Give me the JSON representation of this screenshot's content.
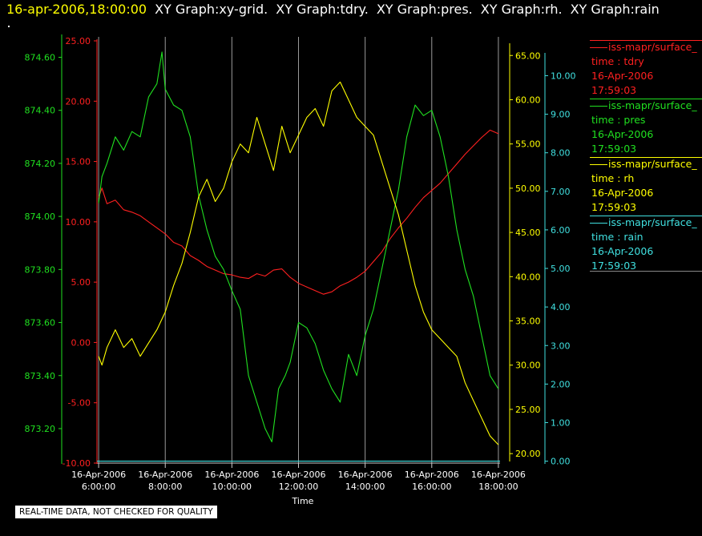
{
  "header": {
    "timestamp": "16-apr-2006,18:00:00",
    "graphs": [
      "XY Graph:xy-grid.",
      "XY Graph:tdry.",
      "XY Graph:pres.",
      "XY Graph:rh.",
      "XY Graph:rain"
    ]
  },
  "footer": {
    "notice": "REAL-TIME DATA, NOT CHECKED FOR QUALITY"
  },
  "legend": [
    {
      "name": "iss-mapr/surface_",
      "var": "time : tdry",
      "date": "16-Apr-2006",
      "time": "17:59:03",
      "color": "#ff2020"
    },
    {
      "name": "iss-mapr/surface_",
      "var": "time : pres",
      "date": "16-Apr-2006",
      "time": "17:59:03",
      "color": "#20e020"
    },
    {
      "name": "iss-mapr/surface_",
      "var": "time : rh",
      "date": "16-Apr-2006",
      "time": "17:59:03",
      "color": "#ffff00"
    },
    {
      "name": "iss-mapr/surface_",
      "var": "time : rain",
      "date": "16-Apr-2006",
      "time": "17:59:03",
      "color": "#40e0e0"
    }
  ],
  "chart_data": {
    "type": "line",
    "xlabel": "Time",
    "xlim": [
      5.95,
      18.05
    ],
    "xticks": [
      {
        "t": 6,
        "date": "16-Apr-2006",
        "time": "6:00:00"
      },
      {
        "t": 8,
        "date": "16-Apr-2006",
        "time": "8:00:00"
      },
      {
        "t": 10,
        "date": "16-Apr-2006",
        "time": "10:00:00"
      },
      {
        "t": 12,
        "date": "16-Apr-2006",
        "time": "12:00:00"
      },
      {
        "t": 14,
        "date": "16-Apr-2006",
        "time": "14:00:00"
      },
      {
        "t": 16,
        "date": "16-Apr-2006",
        "time": "16:00:00"
      },
      {
        "t": 18,
        "date": "16-Apr-2006",
        "time": "18:00:00"
      }
    ],
    "grid": "vertical",
    "axes": {
      "pres": {
        "color": "#20e020",
        "ylim": [
          873.07,
          874.68
        ],
        "ticks": [
          873.2,
          873.4,
          873.6,
          873.8,
          874.0,
          874.2,
          874.4,
          874.6
        ],
        "decimals": 2
      },
      "tdry": {
        "color": "#ff2020",
        "ylim": [
          -10,
          25
        ],
        "ticks": [
          -10,
          -5,
          0,
          5,
          10,
          15,
          20,
          25
        ],
        "decimals": 2
      },
      "rh": {
        "color": "#ffff00",
        "ylim": [
          19.2,
          66.2
        ],
        "ticks": [
          20,
          25,
          30,
          35,
          40,
          45,
          50,
          55,
          60,
          65
        ],
        "decimals": 2
      },
      "rain": {
        "color": "#40e0e0",
        "ylim": [
          -0.05,
          10.55
        ],
        "ticks": [
          0,
          1,
          2,
          3,
          4,
          5,
          6,
          7,
          8,
          9,
          10
        ],
        "decimals": 2
      }
    },
    "series": [
      {
        "name": "tdry",
        "axis": "tdry",
        "color": "#ff2020",
        "points": [
          [
            6.0,
            12.0
          ],
          [
            6.1,
            12.8
          ],
          [
            6.25,
            11.5
          ],
          [
            6.5,
            11.8
          ],
          [
            6.75,
            11.0
          ],
          [
            7.0,
            10.8
          ],
          [
            7.25,
            10.5
          ],
          [
            7.5,
            10.0
          ],
          [
            7.75,
            9.5
          ],
          [
            8.0,
            9.0
          ],
          [
            8.25,
            8.3
          ],
          [
            8.5,
            8.0
          ],
          [
            8.75,
            7.2
          ],
          [
            9.0,
            6.8
          ],
          [
            9.25,
            6.3
          ],
          [
            9.5,
            6.0
          ],
          [
            9.75,
            5.7
          ],
          [
            10.0,
            5.6
          ],
          [
            10.25,
            5.4
          ],
          [
            10.5,
            5.3
          ],
          [
            10.75,
            5.7
          ],
          [
            11.0,
            5.5
          ],
          [
            11.25,
            6.0
          ],
          [
            11.5,
            6.1
          ],
          [
            11.75,
            5.4
          ],
          [
            12.0,
            4.9
          ],
          [
            12.25,
            4.6
          ],
          [
            12.5,
            4.3
          ],
          [
            12.75,
            4.0
          ],
          [
            13.0,
            4.2
          ],
          [
            13.25,
            4.7
          ],
          [
            13.5,
            5.0
          ],
          [
            13.75,
            5.4
          ],
          [
            14.0,
            5.9
          ],
          [
            14.25,
            6.7
          ],
          [
            14.5,
            7.5
          ],
          [
            14.75,
            8.6
          ],
          [
            15.0,
            9.5
          ],
          [
            15.25,
            10.3
          ],
          [
            15.5,
            11.2
          ],
          [
            15.75,
            12.0
          ],
          [
            16.0,
            12.6
          ],
          [
            16.25,
            13.2
          ],
          [
            16.5,
            14.0
          ],
          [
            16.75,
            14.8
          ],
          [
            17.0,
            15.6
          ],
          [
            17.25,
            16.3
          ],
          [
            17.5,
            17.0
          ],
          [
            17.75,
            17.6
          ],
          [
            18.0,
            17.3
          ]
        ]
      },
      {
        "name": "pres",
        "axis": "pres",
        "color": "#20e020",
        "points": [
          [
            6.0,
            874.05
          ],
          [
            6.1,
            874.15
          ],
          [
            6.25,
            874.2
          ],
          [
            6.5,
            874.3
          ],
          [
            6.75,
            874.25
          ],
          [
            7.0,
            874.32
          ],
          [
            7.25,
            874.3
          ],
          [
            7.5,
            874.45
          ],
          [
            7.75,
            874.5
          ],
          [
            7.9,
            874.62
          ],
          [
            8.0,
            874.48
          ],
          [
            8.25,
            874.42
          ],
          [
            8.5,
            874.4
          ],
          [
            8.75,
            874.3
          ],
          [
            9.0,
            874.08
          ],
          [
            9.25,
            873.95
          ],
          [
            9.5,
            873.85
          ],
          [
            9.75,
            873.8
          ],
          [
            10.0,
            873.72
          ],
          [
            10.25,
            873.65
          ],
          [
            10.5,
            873.4
          ],
          [
            10.75,
            873.3
          ],
          [
            11.0,
            873.2
          ],
          [
            11.2,
            873.15
          ],
          [
            11.4,
            873.35
          ],
          [
            11.6,
            873.4
          ],
          [
            11.75,
            873.45
          ],
          [
            12.0,
            873.6
          ],
          [
            12.25,
            873.58
          ],
          [
            12.5,
            873.52
          ],
          [
            12.75,
            873.42
          ],
          [
            13.0,
            873.35
          ],
          [
            13.25,
            873.3
          ],
          [
            13.5,
            873.48
          ],
          [
            13.75,
            873.4
          ],
          [
            14.0,
            873.55
          ],
          [
            14.25,
            873.65
          ],
          [
            14.5,
            873.8
          ],
          [
            14.75,
            873.95
          ],
          [
            15.0,
            874.1
          ],
          [
            15.25,
            874.3
          ],
          [
            15.5,
            874.42
          ],
          [
            15.75,
            874.38
          ],
          [
            16.0,
            874.4
          ],
          [
            16.25,
            874.3
          ],
          [
            16.5,
            874.15
          ],
          [
            16.75,
            873.95
          ],
          [
            17.0,
            873.8
          ],
          [
            17.25,
            873.7
          ],
          [
            17.5,
            873.55
          ],
          [
            17.75,
            873.4
          ],
          [
            18.0,
            873.35
          ]
        ]
      },
      {
        "name": "rh",
        "axis": "rh",
        "color": "#ffff00",
        "points": [
          [
            6.0,
            31.0
          ],
          [
            6.1,
            30.0
          ],
          [
            6.25,
            32.0
          ],
          [
            6.5,
            34.0
          ],
          [
            6.75,
            32.0
          ],
          [
            7.0,
            33.0
          ],
          [
            7.25,
            31.0
          ],
          [
            7.5,
            32.5
          ],
          [
            7.75,
            34.0
          ],
          [
            8.0,
            36.0
          ],
          [
            8.25,
            39.0
          ],
          [
            8.5,
            41.5
          ],
          [
            8.75,
            45.0
          ],
          [
            9.0,
            49.0
          ],
          [
            9.25,
            51.0
          ],
          [
            9.5,
            48.5
          ],
          [
            9.75,
            50.0
          ],
          [
            10.0,
            53.0
          ],
          [
            10.25,
            55.0
          ],
          [
            10.5,
            54.0
          ],
          [
            10.75,
            58.0
          ],
          [
            11.0,
            55.0
          ],
          [
            11.25,
            52.0
          ],
          [
            11.5,
            57.0
          ],
          [
            11.75,
            54.0
          ],
          [
            12.0,
            56.0
          ],
          [
            12.25,
            58.0
          ],
          [
            12.5,
            59.0
          ],
          [
            12.75,
            57.0
          ],
          [
            13.0,
            61.0
          ],
          [
            13.25,
            62.0
          ],
          [
            13.5,
            60.0
          ],
          [
            13.75,
            58.0
          ],
          [
            14.0,
            57.0
          ],
          [
            14.25,
            56.0
          ],
          [
            14.5,
            53.0
          ],
          [
            14.75,
            50.0
          ],
          [
            15.0,
            47.0
          ],
          [
            15.25,
            43.0
          ],
          [
            15.5,
            39.0
          ],
          [
            15.75,
            36.0
          ],
          [
            16.0,
            34.0
          ],
          [
            16.25,
            33.0
          ],
          [
            16.5,
            32.0
          ],
          [
            16.75,
            31.0
          ],
          [
            17.0,
            28.0
          ],
          [
            17.25,
            26.0
          ],
          [
            17.5,
            24.0
          ],
          [
            17.75,
            22.0
          ],
          [
            18.0,
            21.0
          ]
        ]
      },
      {
        "name": "rain",
        "axis": "rain",
        "color": "#40e0e0",
        "points": [
          [
            5.95,
            0.0
          ],
          [
            18.05,
            0.0
          ]
        ]
      }
    ]
  }
}
